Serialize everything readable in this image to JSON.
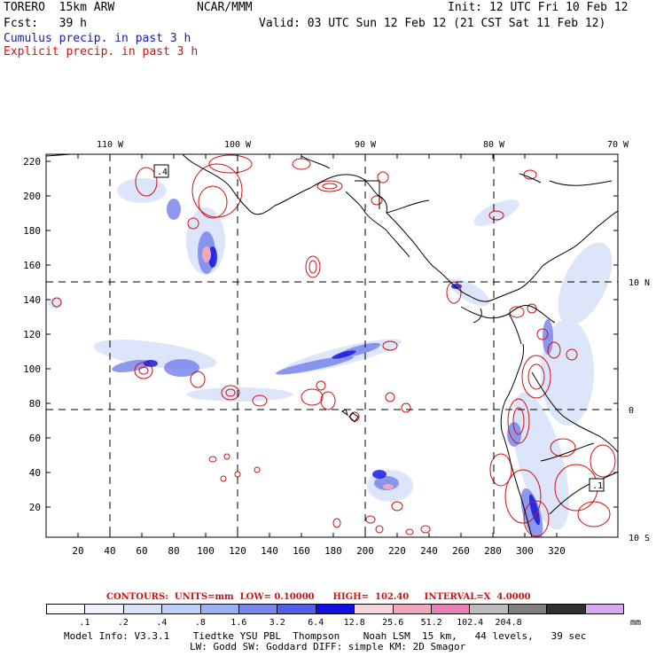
{
  "header": {
    "title_left": "TORERO  15km ARW",
    "title_center": "NCAR/MMM",
    "init": "Init: 12 UTC Fri 10 Feb 12",
    "fcst": "Fcst:   39 h",
    "valid": "Valid: 03 UTC Sun 12 Feb 12 (21 CST Sat 11 Feb 12)",
    "cumulus_label": "Cumulus precip. in past 3 h",
    "explicit_label": "Explicit precip. in past 3 h"
  },
  "map": {
    "lon_labels": [
      "110 W",
      "100 W",
      "90 W",
      "80 W",
      "70 W"
    ],
    "lat_labels": [
      "10 N",
      "0",
      "10 S"
    ],
    "x_ticks": [
      "20",
      "40",
      "60",
      "80",
      "100",
      "120",
      "140",
      "160",
      "180",
      "200",
      "220",
      "240",
      "260",
      "280",
      "300",
      "320"
    ],
    "y_ticks": [
      "220",
      "200",
      "180",
      "160",
      "140",
      "120",
      "100",
      "80",
      "60",
      "40",
      "20"
    ],
    "boxed_labels": [
      ".4",
      ".1"
    ]
  },
  "contours": {
    "text": "CONTOURS:  UNITS=mm  LOW= 0.10000      HIGH=  102.40     INTERVAL=X  4.0000"
  },
  "legend": {
    "colors": [
      "#ffffff",
      "#eef2fb",
      "#d8e3fa",
      "#bcd0f7",
      "#9ab0f2",
      "#7a86ec",
      "#5060e8",
      "#1010e0",
      "#f6d6d8",
      "#f0a8b8",
      "#e880b8",
      "#bcbcbc",
      "#808080",
      "#303030",
      "#d8a8f0"
    ],
    "ticks": [
      ".1",
      ".2",
      ".4",
      ".8",
      "1.6",
      "3.2",
      "6.4",
      "12.8",
      "25.6",
      "51.2",
      "102.4",
      "204.8"
    ],
    "unit": "mm"
  },
  "footer": {
    "line1": "Model Info: V3.3.1    Tiedtke YSU PBL  Thompson    Noah LSM  15 km,   44 levels,   39 sec",
    "line2": "LW: Godd SW: Goddard DIFF: simple KM: 2D Smagor"
  },
  "colors": {
    "cumulus": "#1a1aa8",
    "explicit": "#d01010",
    "coast": "#000000"
  }
}
